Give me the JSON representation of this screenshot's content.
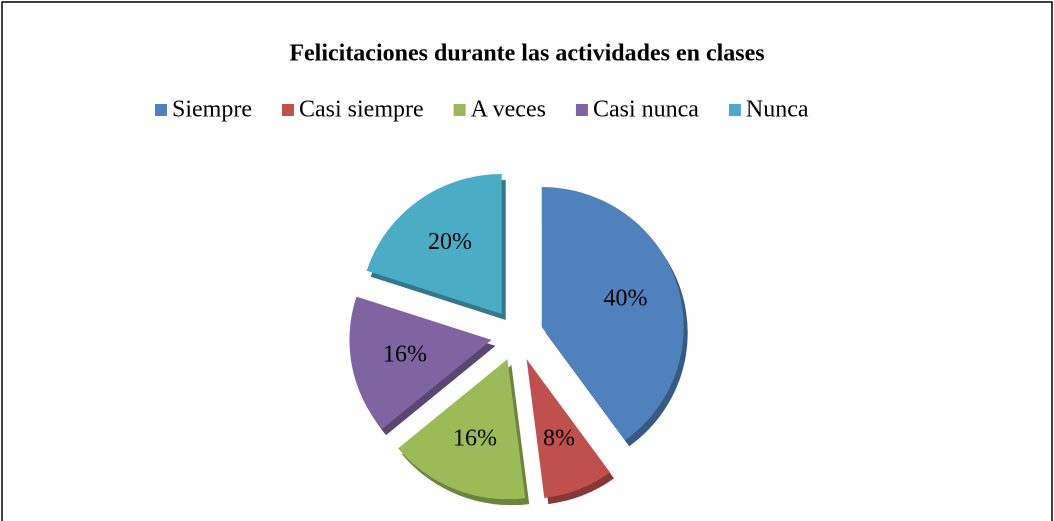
{
  "chart_data": {
    "type": "pie",
    "title": "Felicitaciones durante las actividades en clases",
    "categories": [
      "Siempre",
      "Casi siempre",
      "A veces",
      "Casi nunca",
      "Nunca"
    ],
    "values": [
      40,
      8,
      16,
      16,
      20
    ],
    "value_labels": [
      "40%",
      "8%",
      "16%",
      "16%",
      "20%"
    ],
    "colors": [
      "#4f81bd",
      "#c0504d",
      "#9bbb59",
      "#8064a2",
      "#4bacc6"
    ],
    "legend": "top"
  }
}
